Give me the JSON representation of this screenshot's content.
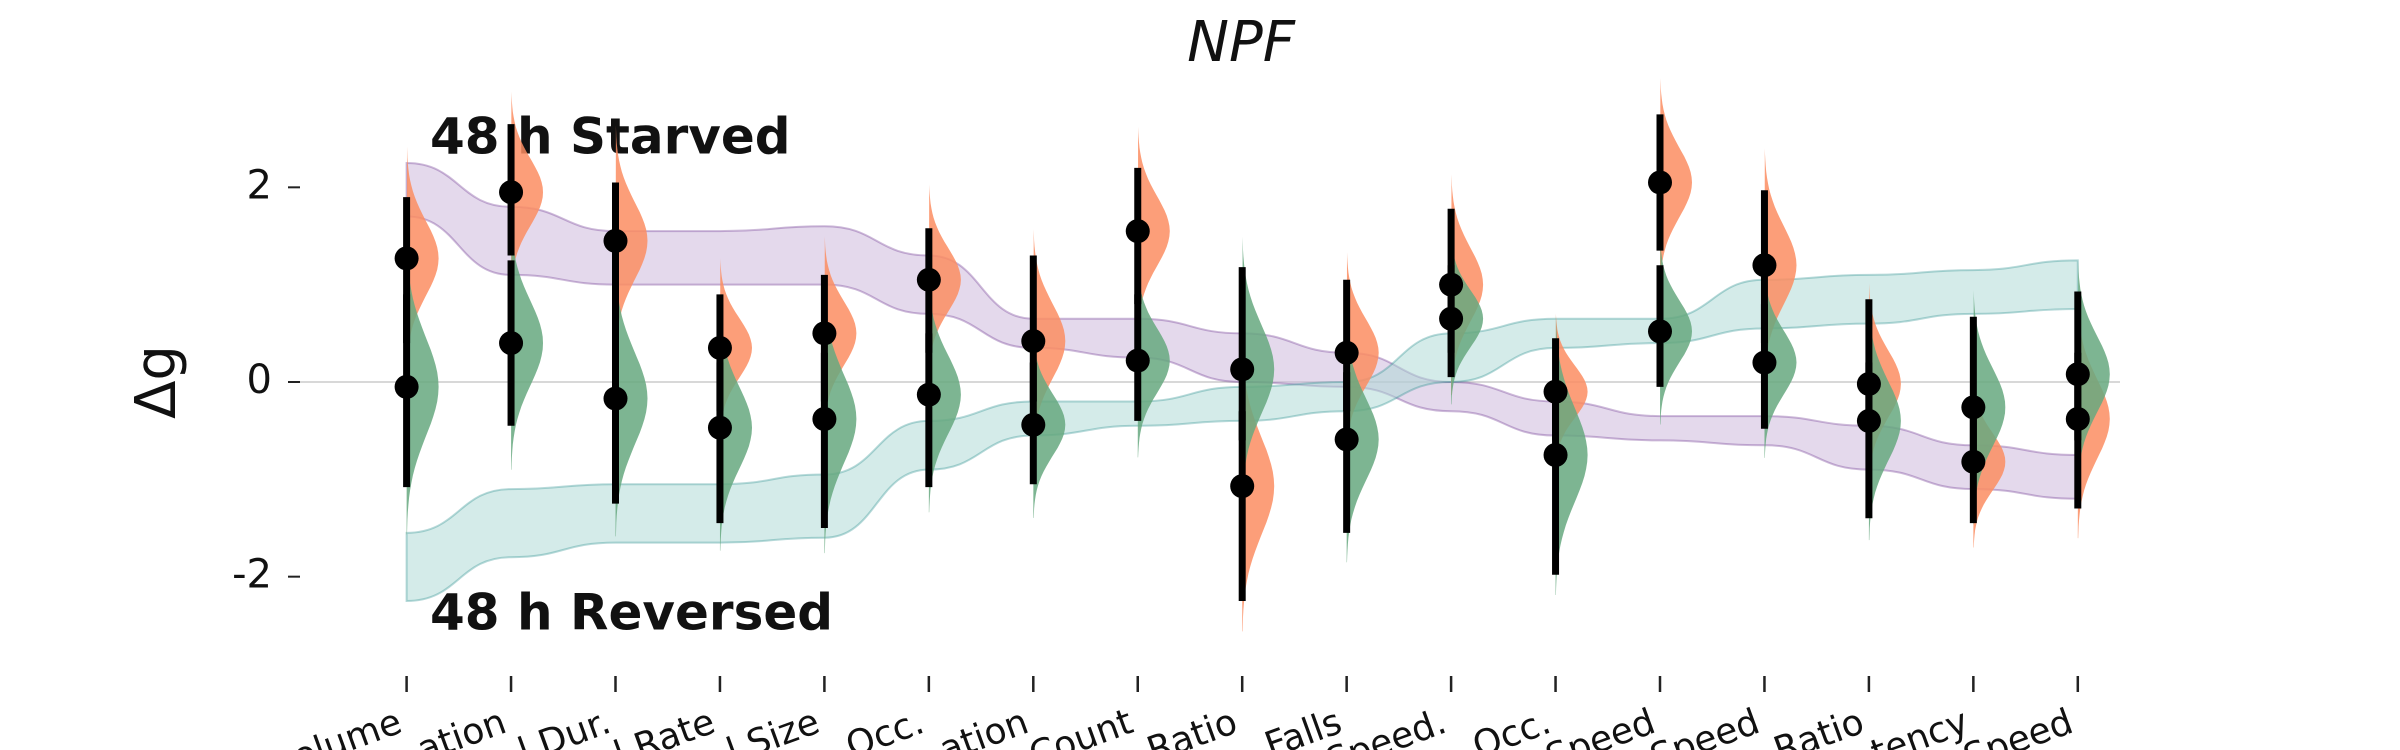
{
  "chart_data": {
    "type": "estimation",
    "title": "NPF",
    "y_label": "Δg",
    "ylim": [
      -3,
      3
    ],
    "yticks": [
      -2,
      0,
      2
    ],
    "zero_line": true,
    "categories": [
      "olume",
      "ation",
      "l Dur.",
      "l Rate",
      "l Size",
      "Occ.",
      "ation",
      "Count",
      "Ratio",
      "Falls",
      "Speed.",
      "Occ.",
      "Speed",
      "Speed",
      "Ratio",
      "tency",
      "Speed"
    ],
    "series": [
      {
        "color": "#fc8d62",
        "values": [
          1.27,
          1.95,
          1.45,
          0.35,
          0.5,
          1.05,
          0.42,
          1.55,
          -1.07,
          0.3,
          1.0,
          -0.1,
          2.05,
          1.2,
          -0.02,
          -0.82,
          -0.38
        ],
        "ci_low": [
          0.4,
          1.3,
          0.5,
          -0.3,
          -0.2,
          0.3,
          -0.2,
          0.8,
          -2.25,
          -0.3,
          0.3,
          -0.6,
          1.35,
          0.4,
          -0.5,
          -1.45,
          -1.3
        ],
        "ci_high": [
          1.9,
          2.65,
          2.05,
          0.9,
          1.1,
          1.58,
          1.3,
          2.2,
          -0.3,
          1.05,
          1.78,
          0.45,
          2.75,
          1.97,
          0.85,
          -0.3,
          0.3
        ]
      },
      {
        "color": "#66a87f",
        "values": [
          -0.05,
          0.4,
          -0.17,
          -0.47,
          -0.38,
          -0.13,
          -0.44,
          0.22,
          0.13,
          -0.59,
          0.65,
          -0.75,
          0.52,
          0.2,
          -0.4,
          -0.26,
          0.08
        ],
        "ci_low": [
          -1.08,
          -0.45,
          -1.25,
          -1.45,
          -1.5,
          -1.08,
          -1.05,
          -0.4,
          -0.6,
          -1.55,
          0.05,
          -1.98,
          -0.05,
          -0.48,
          -1.4,
          -0.9,
          -0.6
        ],
        "ci_high": [
          0.9,
          1.25,
          0.6,
          0.2,
          0.3,
          0.5,
          0.2,
          0.9,
          1.18,
          0.1,
          1.2,
          -0.1,
          1.2,
          0.8,
          0.2,
          0.67,
          0.93
        ]
      }
    ],
    "bands": [
      {
        "name": "48 h Starved",
        "color": "#5b1a82",
        "fill": "#c9b3d9",
        "lower": [
          1.7,
          1.1,
          1.0,
          1.0,
          1.0,
          0.7,
          0.35,
          0.25,
          0.0,
          -0.05,
          -0.3,
          -0.55,
          -0.6,
          -0.65,
          -0.9,
          -1.1,
          -1.2
        ],
        "upper": [
          2.25,
          1.8,
          1.55,
          1.55,
          1.6,
          1.3,
          0.65,
          0.65,
          0.5,
          0.3,
          0.0,
          -0.2,
          -0.35,
          -0.35,
          -0.45,
          -0.65,
          -0.75
        ]
      },
      {
        "name": "48 h Reversed",
        "color": "#108080",
        "fill": "#a9d8d3",
        "lower": [
          -2.25,
          -1.8,
          -1.65,
          -1.65,
          -1.6,
          -0.9,
          -0.55,
          -0.45,
          -0.4,
          -0.3,
          0.0,
          0.35,
          0.4,
          0.55,
          0.6,
          0.7,
          0.75
        ],
        "upper": [
          -1.55,
          -1.1,
          -1.05,
          -1.05,
          -0.95,
          -0.4,
          -0.2,
          -0.2,
          -0.05,
          0.0,
          0.5,
          0.65,
          0.65,
          1.05,
          1.1,
          1.15,
          1.25
        ]
      }
    ]
  }
}
